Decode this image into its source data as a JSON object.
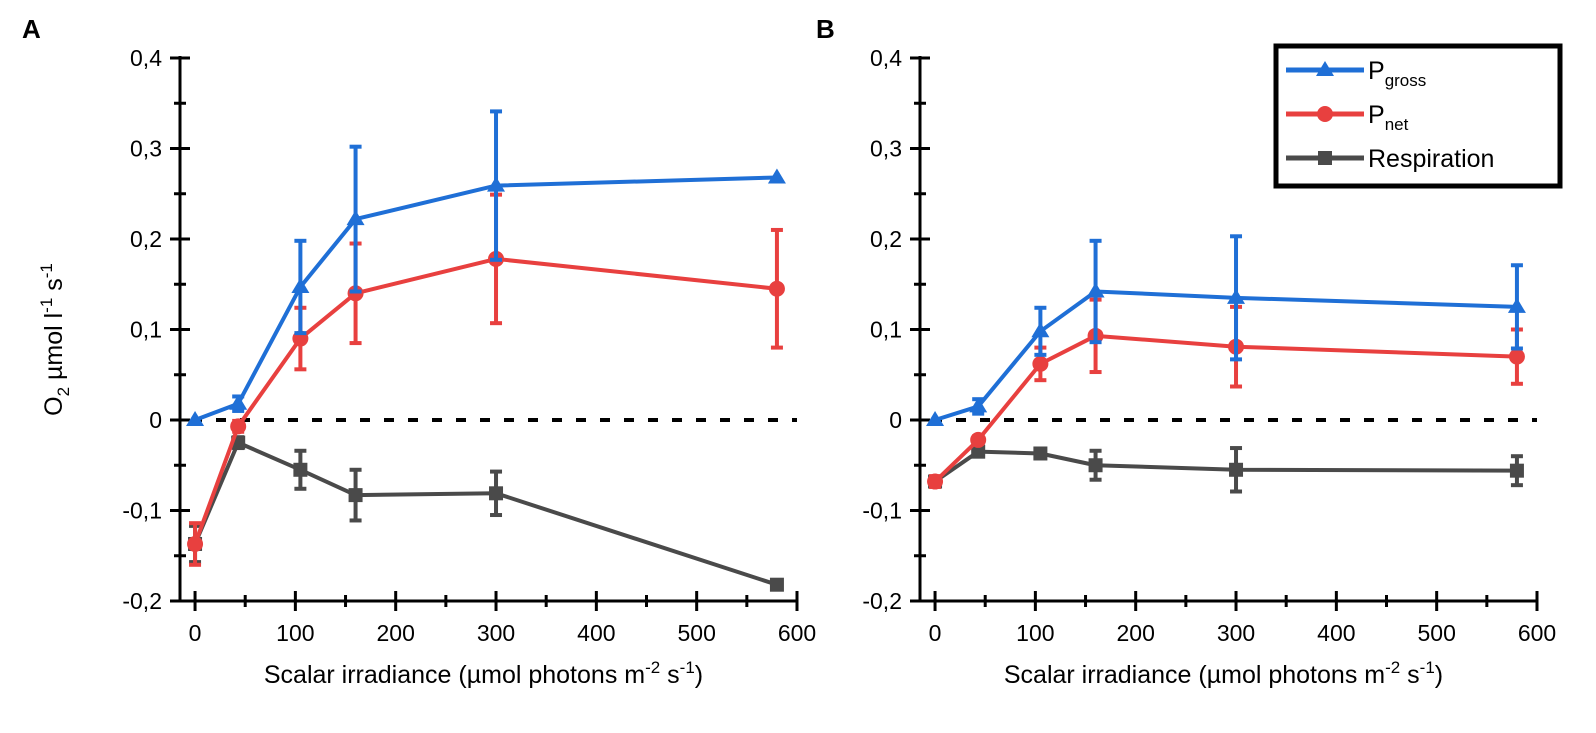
{
  "chart_data": [
    {
      "type": "line",
      "panel_label": "A",
      "xlabel": "Scalar irradiance (µmol photons m",
      "xlabel_sup1": "-2",
      "xlabel_mid": " s",
      "xlabel_sup2": "-1",
      "xlabel_end": ")",
      "ylabel_main": "O",
      "ylabel_sub": "2",
      "ylabel_rest": " µmol l",
      "ylabel_sup1": "-1",
      "ylabel_s": " s",
      "ylabel_sup2": "-1",
      "xlim": [
        -15,
        600
      ],
      "ylim": [
        -0.2,
        0.4
      ],
      "xticks": [
        0,
        100,
        200,
        300,
        400,
        500,
        600
      ],
      "xtick_labels": [
        "0",
        "100",
        "200",
        "300",
        "400",
        "500",
        "600"
      ],
      "yticks": [
        -0.2,
        -0.1,
        0,
        0.1,
        0.2,
        0.3,
        0.4
      ],
      "ytick_labels": [
        "-0,2",
        "-0,1",
        "0",
        "0,1",
        "0,2",
        "0,3",
        "0,4"
      ],
      "zero_line": "dashed",
      "series": [
        {
          "name": "Pgross",
          "color": "#1f6fd6",
          "marker": "triangle",
          "x": [
            0,
            43,
            105,
            160,
            300,
            580
          ],
          "y": [
            0.0,
            0.018,
            0.147,
            0.222,
            0.259,
            0.268
          ],
          "err": [
            0,
            0.008,
            0.051,
            0.08,
            0.082,
            0
          ]
        },
        {
          "name": "Pnet",
          "color": "#e8403f",
          "marker": "circle",
          "x": [
            0,
            43,
            105,
            160,
            300,
            580
          ],
          "y": [
            -0.137,
            -0.007,
            0.09,
            0.14,
            0.178,
            0.145
          ],
          "err": [
            0.023,
            0.006,
            0.034,
            0.055,
            0.071,
            0.065
          ]
        },
        {
          "name": "Respiration",
          "color": "#4a4a4a",
          "marker": "square",
          "x": [
            0,
            43,
            105,
            160,
            300,
            580
          ],
          "y": [
            -0.137,
            -0.025,
            -0.055,
            -0.083,
            -0.081,
            -0.182
          ],
          "err": [
            0.02,
            0.006,
            0.021,
            0.028,
            0.024,
            0.003
          ]
        }
      ]
    },
    {
      "type": "line",
      "panel_label": "B",
      "xlabel": "Scalar irradiance (µmol photons m",
      "xlabel_sup1": "-2",
      "xlabel_mid": " s",
      "xlabel_sup2": "-1",
      "xlabel_end": ")",
      "xlim": [
        -15,
        600
      ],
      "ylim": [
        -0.2,
        0.4
      ],
      "xticks": [
        0,
        100,
        200,
        300,
        400,
        500,
        600
      ],
      "xtick_labels": [
        "0",
        "100",
        "200",
        "300",
        "400",
        "500",
        "600"
      ],
      "yticks": [
        -0.2,
        -0.1,
        0,
        0.1,
        0.2,
        0.3,
        0.4
      ],
      "ytick_labels": [
        "-0,2",
        "-0,1",
        "0",
        "0,1",
        "0,2",
        "0,3",
        "0,4"
      ],
      "zero_line": "dashed",
      "legend": {
        "placement": "top-right",
        "entries": [
          {
            "main": "P",
            "sub": "gross",
            "color": "#1f6fd6",
            "marker": "triangle"
          },
          {
            "main": "P",
            "sub": "net",
            "color": "#e8403f",
            "marker": "circle"
          },
          {
            "main": "Respiration",
            "sub": "",
            "color": "#4a4a4a",
            "marker": "square"
          }
        ]
      },
      "series": [
        {
          "name": "Pgross",
          "color": "#1f6fd6",
          "marker": "triangle",
          "x": [
            0,
            43,
            105,
            160,
            300,
            580
          ],
          "y": [
            0.0,
            0.015,
            0.098,
            0.142,
            0.135,
            0.125
          ],
          "err": [
            0,
            0.008,
            0.026,
            0.056,
            0.068,
            0.046
          ]
        },
        {
          "name": "Pnet",
          "color": "#e8403f",
          "marker": "circle",
          "x": [
            0,
            43,
            105,
            160,
            300,
            580
          ],
          "y": [
            -0.068,
            -0.022,
            0.062,
            0.093,
            0.081,
            0.07
          ],
          "err": [
            0.006,
            0.004,
            0.018,
            0.04,
            0.044,
            0.03
          ]
        },
        {
          "name": "Respiration",
          "color": "#4a4a4a",
          "marker": "square",
          "x": [
            0,
            43,
            105,
            160,
            300,
            580
          ],
          "y": [
            -0.068,
            -0.035,
            -0.037,
            -0.05,
            -0.055,
            -0.056
          ],
          "err": [
            0.005,
            0.004,
            0.005,
            0.016,
            0.024,
            0.016
          ]
        }
      ]
    }
  ]
}
